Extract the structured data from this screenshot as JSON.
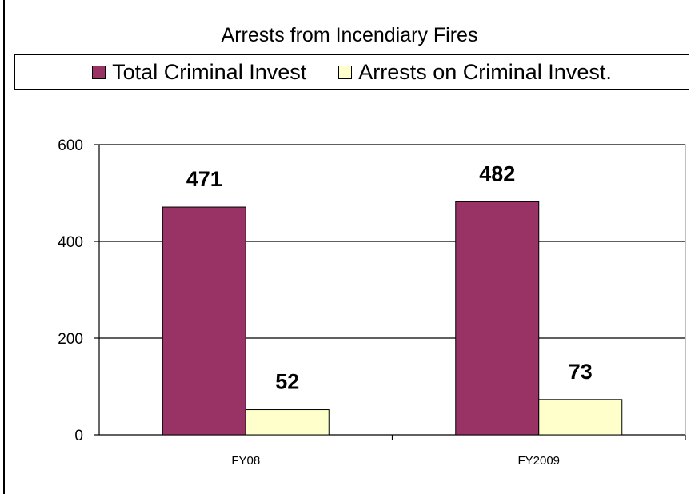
{
  "chart_data": {
    "type": "bar",
    "title": "Arrests from Incendiary Fires",
    "xlabel": "",
    "ylabel": "",
    "categories": [
      "FY08",
      "FY2009"
    ],
    "series": [
      {
        "name": "Total Criminal Invest",
        "values": [
          471,
          482
        ],
        "color": "#993366"
      },
      {
        "name": "Arrests on Criminal Invest.",
        "values": [
          52,
          73
        ],
        "color": "#FFFFCC"
      }
    ],
    "ylim": [
      0,
      600
    ],
    "yticks": [
      0,
      200,
      400,
      600
    ],
    "grid": true,
    "legend_position": "top"
  }
}
